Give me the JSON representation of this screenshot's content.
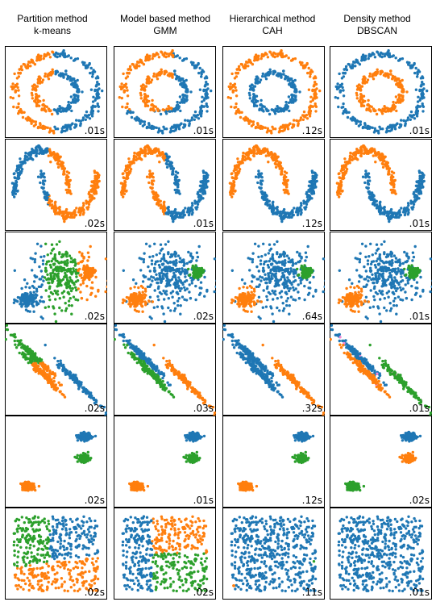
{
  "columns": [
    {
      "method": "Partition method",
      "algorithm": "k-means"
    },
    {
      "method": "Model based method",
      "algorithm": "GMM"
    },
    {
      "method": "Hierarchical method",
      "algorithm": "CAH"
    },
    {
      "method": "Density method",
      "algorithm": "DBSCAN"
    }
  ],
  "colors": {
    "c0": "#1f77b4",
    "c1": "#ff7f0e",
    "c2": "#2ca02c",
    "c3": "#f28ad8"
  },
  "chart_data": {
    "type": "scatter",
    "datasets": [
      "noisy_circles",
      "noisy_moons",
      "blobs_varied",
      "aniso",
      "blobs",
      "no_structure"
    ],
    "timings": [
      [
        ".01s",
        ".01s",
        ".12s",
        ".01s"
      ],
      [
        ".02s",
        ".01s",
        ".12s",
        ".01s"
      ],
      [
        ".02s",
        ".02s",
        ".64s",
        ".01s"
      ],
      [
        ".02s",
        ".03s",
        ".32s",
        ".01s"
      ],
      [
        ".02s",
        ".01s",
        ".12s",
        ".02s"
      ],
      [
        ".02s",
        ".02s",
        ".11s",
        ".01s"
      ]
    ],
    "grid": false,
    "axes_visible": false
  }
}
